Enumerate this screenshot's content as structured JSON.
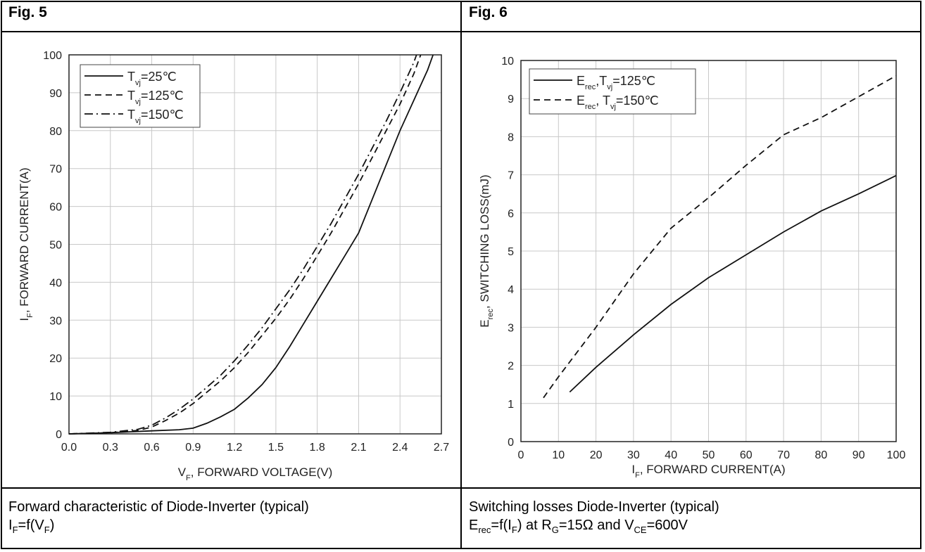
{
  "figures": [
    {
      "title": "Fig. 5",
      "caption_line1": "Forward characteristic of Diode-Inverter (typical)",
      "caption_line2": {
        "a": "I",
        "a_sub": "F",
        "b": "=f(V",
        "b_sub": "F",
        "c": ")"
      }
    },
    {
      "title": "Fig. 6",
      "caption_line1": "Switching losses Diode-Inverter (typical)",
      "caption_line2": {
        "a": "E",
        "a_sub": "rec",
        "b": "=f(I",
        "b_sub": "F",
        "c": ") at R",
        "c_sub": "G",
        "d": "=15Ω and V",
        "d_sub": "CE",
        "e": "=600V"
      }
    }
  ],
  "chart_data": [
    {
      "type": "line",
      "xlabel": {
        "main": "V",
        "sub": "F",
        "rest": ", FORWARD VOLTAGE(V)"
      },
      "ylabel": {
        "main": "I",
        "sub": "F",
        "rest": ", FORWARD CURRENT(A)"
      },
      "xlim": [
        0,
        2.7
      ],
      "ylim": [
        0,
        100
      ],
      "xticks": [
        "0.0",
        "0.3",
        "0.6",
        "0.9",
        "1.2",
        "1.5",
        "1.8",
        "2.1",
        "2.4",
        "2.7"
      ],
      "yticks": [
        "0",
        "10",
        "20",
        "30",
        "40",
        "50",
        "60",
        "70",
        "80",
        "90",
        "100"
      ],
      "grid": true,
      "legend_position": "top-left",
      "series": [
        {
          "name": "T_vj=25℃",
          "label_main": "T",
          "label_sub": "vj",
          "label_rest": "=25℃",
          "style": "solid",
          "points": [
            [
              0,
              0
            ],
            [
              0.3,
              0.3
            ],
            [
              0.6,
              0.8
            ],
            [
              0.8,
              1.1
            ],
            [
              0.9,
              1.5
            ],
            [
              1.0,
              2.8
            ],
            [
              1.1,
              4.5
            ],
            [
              1.2,
              6.5
            ],
            [
              1.3,
              9.5
            ],
            [
              1.4,
              13
            ],
            [
              1.5,
              17.5
            ],
            [
              1.6,
              23
            ],
            [
              1.7,
              29
            ],
            [
              1.8,
              35
            ],
            [
              1.9,
              41
            ],
            [
              2.0,
              47
            ],
            [
              2.1,
              53
            ],
            [
              2.2,
              62
            ],
            [
              2.3,
              71
            ],
            [
              2.4,
              80
            ],
            [
              2.5,
              88
            ],
            [
              2.6,
              96
            ],
            [
              2.64,
              100
            ]
          ]
        },
        {
          "name": "T_vj=125℃",
          "label_main": "T",
          "label_sub": "vj",
          "label_rest": "=125℃",
          "style": "dash",
          "points": [
            [
              0,
              0
            ],
            [
              0.3,
              0.3
            ],
            [
              0.5,
              0.9
            ],
            [
              0.6,
              1.8
            ],
            [
              0.7,
              3.5
            ],
            [
              0.8,
              5.5
            ],
            [
              0.9,
              8
            ],
            [
              1.0,
              11
            ],
            [
              1.1,
              14
            ],
            [
              1.2,
              17.5
            ],
            [
              1.3,
              21.5
            ],
            [
              1.4,
              26
            ],
            [
              1.5,
              30.5
            ],
            [
              1.6,
              35.5
            ],
            [
              1.7,
              41
            ],
            [
              1.8,
              47
            ],
            [
              1.9,
              53
            ],
            [
              2.0,
              59.5
            ],
            [
              2.1,
              66
            ],
            [
              2.2,
              73
            ],
            [
              2.3,
              80
            ],
            [
              2.4,
              87
            ],
            [
              2.5,
              95
            ],
            [
              2.55,
              100
            ]
          ]
        },
        {
          "name": "T_vj=150℃",
          "label_main": "T",
          "label_sub": "vj",
          "label_rest": "=150℃",
          "style": "dashdot",
          "points": [
            [
              0,
              0
            ],
            [
              0.3,
              0.4
            ],
            [
              0.5,
              1.2
            ],
            [
              0.6,
              2.3
            ],
            [
              0.7,
              4.2
            ],
            [
              0.8,
              6.5
            ],
            [
              0.9,
              9.2
            ],
            [
              1.0,
              12.3
            ],
            [
              1.1,
              15.5
            ],
            [
              1.2,
              19.3
            ],
            [
              1.3,
              23.5
            ],
            [
              1.4,
              28
            ],
            [
              1.5,
              33
            ],
            [
              1.6,
              38
            ],
            [
              1.7,
              43.5
            ],
            [
              1.8,
              49.5
            ],
            [
              1.9,
              55.5
            ],
            [
              2.0,
              62
            ],
            [
              2.1,
              68.5
            ],
            [
              2.2,
              75.5
            ],
            [
              2.3,
              82.5
            ],
            [
              2.4,
              90
            ],
            [
              2.5,
              98
            ],
            [
              2.52,
              100
            ]
          ]
        }
      ]
    },
    {
      "type": "line",
      "xlabel": {
        "main": "I",
        "sub": "F",
        "rest": ", FORWARD CURRENT(A)"
      },
      "ylabel": {
        "main": "E",
        "sub": "rec",
        "rest": ", SWITCHING LOSS(mJ)"
      },
      "xlim": [
        0,
        100
      ],
      "ylim": [
        0,
        10
      ],
      "xticks": [
        "0",
        "10",
        "20",
        "30",
        "40",
        "50",
        "60",
        "70",
        "80",
        "90",
        "100"
      ],
      "yticks": [
        "0",
        "1",
        "2",
        "3",
        "4",
        "5",
        "6",
        "7",
        "8",
        "9",
        "10"
      ],
      "grid": true,
      "legend_position": "top-left",
      "series": [
        {
          "name": "E_rec,T_vj=125℃",
          "label_main": "E",
          "label_sub": "rec",
          "label_mid": ",T",
          "label_sub2": "vj",
          "label_rest": "=125℃",
          "style": "solid",
          "points": [
            [
              13,
              1.3
            ],
            [
              20,
              1.95
            ],
            [
              30,
              2.8
            ],
            [
              40,
              3.6
            ],
            [
              50,
              4.3
            ],
            [
              60,
              4.9
            ],
            [
              70,
              5.5
            ],
            [
              80,
              6.05
            ],
            [
              90,
              6.5
            ],
            [
              100,
              6.98
            ]
          ]
        },
        {
          "name": "E_rec, T_vj=150℃",
          "label_main": "E",
          "label_sub": "rec",
          "label_mid": ",  T",
          "label_sub2": "vj",
          "label_rest": "=150℃",
          "style": "dash",
          "points": [
            [
              6,
              1.15
            ],
            [
              10,
              1.7
            ],
            [
              20,
              3.0
            ],
            [
              30,
              4.4
            ],
            [
              40,
              5.6
            ],
            [
              50,
              6.4
            ],
            [
              60,
              7.25
            ],
            [
              70,
              8.05
            ],
            [
              80,
              8.5
            ],
            [
              90,
              9.05
            ],
            [
              100,
              9.6
            ]
          ]
        }
      ]
    }
  ]
}
